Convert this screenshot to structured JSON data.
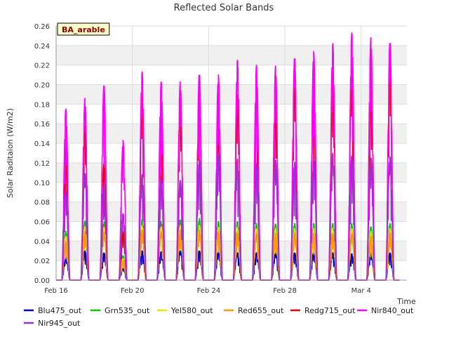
{
  "chart_data": {
    "type": "line",
    "title": "Reflected Solar Bands",
    "ylabel": "Solar Raditaion (W/m2)",
    "xlabel": "Time",
    "site_badge": "BA_arable",
    "x_unit": "days",
    "x_tick_labels": [
      {
        "day": 16,
        "label": "Feb 16"
      },
      {
        "day": 20,
        "label": "Feb 20"
      },
      {
        "day": 24,
        "label": "Feb 24"
      },
      {
        "day": 28,
        "label": "Feb 28"
      },
      {
        "day": 32,
        "label": "Mar 4"
      }
    ],
    "xlim": [
      16,
      34.4
    ],
    "ylim": [
      0,
      0.26
    ],
    "y_ticks": [
      "0.00",
      "0.02",
      "0.04",
      "0.06",
      "0.08",
      "0.10",
      "0.12",
      "0.14",
      "0.16",
      "0.18",
      "0.20",
      "0.22",
      "0.24",
      "0.26"
    ],
    "grid": true,
    "background_bands": "alternating light gray",
    "days": [
      16.5,
      17.5,
      18.5,
      19.5,
      20.5,
      21.5,
      22.5,
      23.5,
      24.5,
      25.5,
      26.5,
      27.5,
      28.5,
      29.5,
      30.5,
      31.5,
      32.5,
      33.5
    ],
    "series": [
      {
        "name": "Blu475_out",
        "color": "#0000cc",
        "daily_peak": [
          0.023,
          0.03,
          0.028,
          0.012,
          0.03,
          0.029,
          0.03,
          0.03,
          0.029,
          0.028,
          0.028,
          0.028,
          0.028,
          0.028,
          0.028,
          0.027,
          0.027,
          0.028
        ]
      },
      {
        "name": "Grn535_out",
        "color": "#00cc00",
        "daily_peak": [
          0.05,
          0.061,
          0.06,
          0.025,
          0.062,
          0.06,
          0.062,
          0.063,
          0.06,
          0.06,
          0.058,
          0.058,
          0.058,
          0.058,
          0.058,
          0.058,
          0.055,
          0.058
        ]
      },
      {
        "name": "Yel580_out",
        "color": "#e6e600",
        "daily_peak": [
          0.045,
          0.055,
          0.054,
          0.022,
          0.056,
          0.055,
          0.056,
          0.056,
          0.054,
          0.054,
          0.053,
          0.053,
          0.053,
          0.053,
          0.053,
          0.053,
          0.05,
          0.053
        ]
      },
      {
        "name": "Red655_out",
        "color": "#ff9900",
        "daily_peak": [
          0.04,
          0.05,
          0.049,
          0.02,
          0.051,
          0.05,
          0.051,
          0.051,
          0.049,
          0.049,
          0.048,
          0.048,
          0.048,
          0.048,
          0.048,
          0.048,
          0.045,
          0.048
        ]
      },
      {
        "name": "Redg715_out",
        "color": "#ee0000",
        "daily_peak": [
          0.135,
          0.158,
          0.12,
          0.05,
          0.187,
          0.175,
          0.186,
          0.19,
          0.18,
          0.19,
          0.192,
          0.185,
          0.2,
          0.205,
          0.21,
          0.214,
          0.21,
          0.217
        ]
      },
      {
        "name": "Nir840_out",
        "color": "#ff00ff",
        "daily_peak": [
          0.175,
          0.186,
          0.201,
          0.143,
          0.213,
          0.203,
          0.203,
          0.212,
          0.21,
          0.225,
          0.22,
          0.219,
          0.229,
          0.234,
          0.242,
          0.253,
          0.248,
          0.245
        ]
      },
      {
        "name": "Nir945_out",
        "color": "#9933cc",
        "daily_peak": [
          0.09,
          0.11,
          0.1,
          0.068,
          0.108,
          0.104,
          0.103,
          0.124,
          0.129,
          0.124,
          0.119,
          0.124,
          0.121,
          0.123,
          0.13,
          0.127,
          0.126,
          0.126
        ]
      }
    ]
  }
}
